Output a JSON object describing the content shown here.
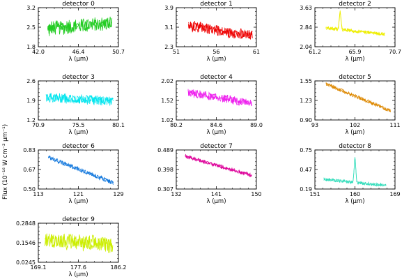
{
  "figure": {
    "ylabel": "Flux (10⁻¹⁶ W cm⁻² μm⁻¹)"
  },
  "chart_data": [
    {
      "type": "line",
      "title": "detector 0",
      "xlabel": "λ (μm)",
      "color": "#22cc22",
      "xlim": [
        42.0,
        50.7
      ],
      "ylim": [
        1.8,
        3.2
      ],
      "xticks": [
        "42.0",
        "46.4",
        "50.7"
      ],
      "yticks": [
        "1.8",
        "2.5",
        "3.2"
      ],
      "x_range": [
        43.0,
        50.0
      ],
      "y_trend": [
        2.45,
        2.65
      ],
      "y_noise": 0.3,
      "spike": null
    },
    {
      "type": "line",
      "title": "detector 1",
      "xlabel": "λ (μm)",
      "color": "#ee0000",
      "xlim": [
        51,
        61
      ],
      "ylim": [
        2.3,
        3.9
      ],
      "xticks": [
        "51",
        "56",
        "61"
      ],
      "yticks": [
        "2.3",
        "3.1",
        "3.9"
      ],
      "x_range": [
        52.5,
        60.5
      ],
      "y_trend": [
        3.15,
        2.75
      ],
      "y_noise": 0.25,
      "spike": null
    },
    {
      "type": "line",
      "title": "detector 2",
      "xlabel": "λ (μm)",
      "color": "#eeee00",
      "xlim": [
        61.2,
        70.7
      ],
      "ylim": [
        2.04,
        3.63
      ],
      "xticks": [
        "61.2",
        "65.9",
        "70.7"
      ],
      "yticks": [
        "2.04",
        "2.84",
        "3.63"
      ],
      "x_range": [
        62.5,
        69.5
      ],
      "y_trend": [
        2.8,
        2.55
      ],
      "y_noise": 0.08,
      "spike": {
        "x": 64.2,
        "height": 0.75,
        "width": 0.15
      }
    },
    {
      "type": "line",
      "title": "detector 3",
      "xlabel": "λ (μm)",
      "color": "#00e5ee",
      "xlim": [
        70.9,
        80.1
      ],
      "ylim": [
        1.2,
        2.6
      ],
      "xticks": [
        "70.9",
        "75.5",
        "80.1"
      ],
      "yticks": [
        "1.2",
        "1.9",
        "2.6"
      ],
      "x_range": [
        71.8,
        79.5
      ],
      "y_trend": [
        2.0,
        1.88
      ],
      "y_noise": 0.2,
      "spike": null
    },
    {
      "type": "line",
      "title": "detector 4",
      "xlabel": "λ (μm)",
      "color": "#ee22ee",
      "xlim": [
        80.2,
        89.0
      ],
      "ylim": [
        1.02,
        2.02
      ],
      "xticks": [
        "80.2",
        "84.6",
        "89.0"
      ],
      "yticks": [
        "1.02",
        "1.52",
        "2.02"
      ],
      "x_range": [
        81.5,
        88.5
      ],
      "y_trend": [
        1.72,
        1.45
      ],
      "y_noise": 0.12,
      "spike": null
    },
    {
      "type": "line",
      "title": "detector 5",
      "xlabel": "λ (μm)",
      "color": "#dd8800",
      "xlim": [
        93,
        111
      ],
      "ylim": [
        0.9,
        1.55
      ],
      "xticks": [
        "93",
        "102",
        "111"
      ],
      "yticks": [
        "0.90",
        "1.23",
        "1.55"
      ],
      "x_range": [
        95.5,
        110.0
      ],
      "y_trend": [
        1.5,
        1.05
      ],
      "y_noise": 0.035,
      "spike": null
    },
    {
      "type": "line",
      "title": "detector 6",
      "xlabel": "λ (μm)",
      "color": "#1177dd",
      "xlim": [
        113,
        129
      ],
      "ylim": [
        0.5,
        0.83
      ],
      "xticks": [
        "113",
        "121",
        "129"
      ],
      "yticks": [
        "0.50",
        "0.67",
        "0.83"
      ],
      "x_range": [
        115.0,
        128.0
      ],
      "y_trend": [
        0.77,
        0.55
      ],
      "y_noise": 0.02,
      "spike": null
    },
    {
      "type": "line",
      "title": "detector 7",
      "xlabel": "λ (μm)",
      "color": "#dd0099",
      "xlim": [
        132,
        150
      ],
      "ylim": [
        0.307,
        0.489
      ],
      "xticks": [
        "132",
        "141",
        "150"
      ],
      "yticks": [
        "0.307",
        "0.398",
        "0.489"
      ],
      "x_range": [
        134.0,
        149.0
      ],
      "y_trend": [
        0.46,
        0.37
      ],
      "y_noise": 0.01,
      "spike": null
    },
    {
      "type": "line",
      "title": "detector 8",
      "xlabel": "λ (μm)",
      "color": "#33ddbb",
      "xlim": [
        151,
        169
      ],
      "ylim": [
        0.19,
        0.75
      ],
      "xticks": [
        "151",
        "160",
        "169"
      ],
      "yticks": [
        "0.19",
        "0.47",
        "0.75"
      ],
      "x_range": [
        153.0,
        167.0
      ],
      "y_trend": [
        0.33,
        0.24
      ],
      "y_noise": 0.025,
      "spike": {
        "x": 160.0,
        "height": 0.38,
        "width": 0.25
      }
    },
    {
      "type": "line",
      "title": "detector 9",
      "xlabel": "λ (μm)",
      "color": "#ccee00",
      "xlim": [
        169.1,
        186.2
      ],
      "ylim": [
        0.0245,
        0.2848
      ],
      "xticks": [
        "169.1",
        "177.6",
        "186.2"
      ],
      "yticks": [
        "0.0245",
        "0.1546",
        "0.2848"
      ],
      "x_range": [
        170.5,
        185.0
      ],
      "y_trend": [
        0.175,
        0.14
      ],
      "y_noise": 0.06,
      "spike": null
    }
  ]
}
